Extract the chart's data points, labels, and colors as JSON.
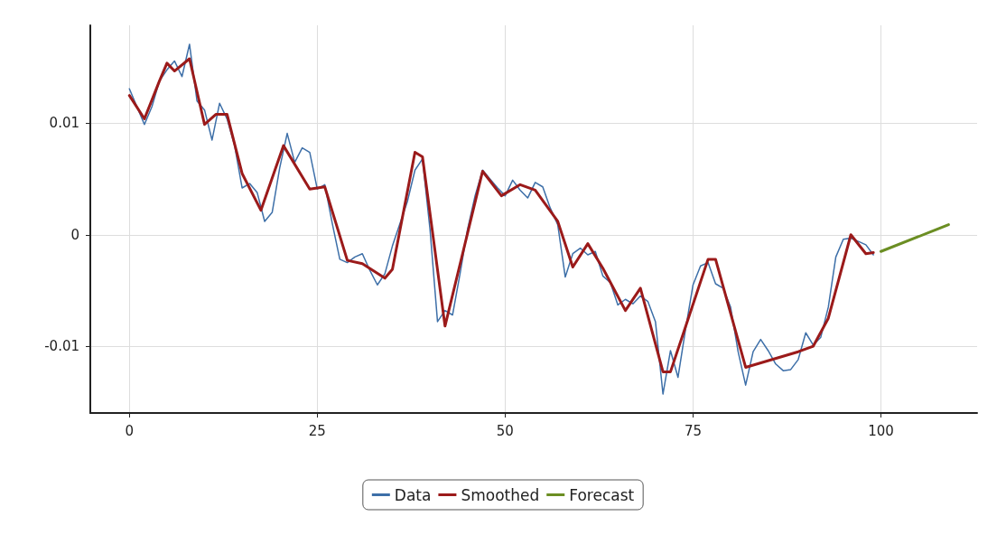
{
  "chart_data": {
    "type": "line",
    "xlim": [
      -5.2,
      112.8
    ],
    "xticks": [
      0,
      25,
      50,
      75,
      100
    ],
    "ylim": [
      -0.016,
      0.0188
    ],
    "yticks": [
      -0.01,
      0,
      0.01
    ],
    "grid": true,
    "legend": "bottom",
    "marker": "none",
    "line_style": "solid",
    "series": [
      {
        "name": "Data",
        "color": "#3d6fa8",
        "x": [
          0,
          1,
          2,
          3,
          4,
          5,
          6,
          7,
          8,
          9,
          10,
          11,
          12,
          13,
          14,
          15,
          16,
          17,
          18,
          19,
          20,
          21,
          22,
          23,
          24,
          25,
          26,
          27,
          28,
          29,
          30,
          31,
          32,
          33,
          34,
          35,
          36,
          37,
          38,
          39,
          40,
          41,
          42,
          43,
          44,
          45,
          46,
          47,
          48,
          49,
          50,
          51,
          52,
          53,
          54,
          55,
          56,
          57,
          58,
          59,
          60,
          61,
          62,
          63,
          64,
          65,
          66,
          67,
          68,
          69,
          70,
          71,
          72,
          73,
          74,
          75,
          76,
          77,
          78,
          79,
          80,
          81,
          82,
          83,
          84,
          85,
          86,
          87,
          88,
          89,
          90,
          91,
          92,
          93,
          94,
          95,
          96,
          97,
          98,
          99
        ],
        "values": [
          0.0131,
          0.0115,
          0.0099,
          0.0115,
          0.0138,
          0.0148,
          0.0156,
          0.0142,
          0.0171,
          0.012,
          0.0112,
          0.0085,
          0.0118,
          0.0104,
          0.008,
          0.0042,
          0.0046,
          0.0038,
          0.0012,
          0.002,
          0.006,
          0.0091,
          0.0065,
          0.0078,
          0.0074,
          0.0041,
          0.0045,
          0.001,
          -0.0022,
          -0.0025,
          -0.002,
          -0.0017,
          -0.0032,
          -0.0045,
          -0.0035,
          -0.001,
          0.001,
          0.003,
          0.0058,
          0.0068,
          0.0005,
          -0.0078,
          -0.0068,
          -0.0072,
          -0.0035,
          0.0005,
          0.0035,
          0.0058,
          0.005,
          0.0042,
          0.0035,
          0.0049,
          0.004,
          0.0033,
          0.0047,
          0.0043,
          0.0024,
          0.0009,
          -0.0038,
          -0.0017,
          -0.0012,
          -0.0018,
          -0.0015,
          -0.0037,
          -0.0043,
          -0.0063,
          -0.0058,
          -0.0062,
          -0.0055,
          -0.006,
          -0.0078,
          -0.0143,
          -0.0104,
          -0.0128,
          -0.0085,
          -0.0045,
          -0.0028,
          -0.0025,
          -0.0044,
          -0.0048,
          -0.0065,
          -0.0105,
          -0.0135,
          -0.0105,
          -0.0094,
          -0.0104,
          -0.0116,
          -0.0122,
          -0.0121,
          -0.0112,
          -0.0088,
          -0.0099,
          -0.0092,
          -0.0065,
          -0.002,
          -0.0004,
          -0.0003,
          -0.0006,
          -0.0009,
          -0.0018
        ]
      },
      {
        "name": "Smoothed",
        "color": "#9b1a1a",
        "x": [
          0,
          2,
          4,
          5,
          6,
          8,
          10,
          11.5,
          13,
          15,
          17.5,
          20.5,
          24,
          26,
          29,
          31,
          34,
          35,
          38,
          39,
          42,
          47,
          49.5,
          52,
          54,
          57,
          59,
          61,
          63,
          66,
          68,
          71,
          72,
          77,
          78,
          82,
          89,
          91,
          93,
          96,
          98,
          99
        ],
        "values": [
          0.0125,
          0.0104,
          0.0138,
          0.0154,
          0.0147,
          0.0158,
          0.0099,
          0.0108,
          0.0108,
          0.0055,
          0.0022,
          0.008,
          0.0041,
          0.0043,
          -0.0023,
          -0.0026,
          -0.0039,
          -0.0031,
          0.0074,
          0.007,
          -0.0082,
          0.0057,
          0.0035,
          0.0045,
          0.004,
          0.0012,
          -0.0029,
          -0.0008,
          -0.003,
          -0.0068,
          -0.0048,
          -0.0123,
          -0.0123,
          -0.0022,
          -0.0022,
          -0.0119,
          -0.0105,
          -0.01,
          -0.0075,
          0,
          -0.0017,
          -0.0016
        ]
      },
      {
        "name": "Forecast",
        "color": "#6b8e23",
        "x": [
          100,
          109
        ],
        "values": [
          -0.0015,
          0.0009
        ]
      }
    ]
  }
}
